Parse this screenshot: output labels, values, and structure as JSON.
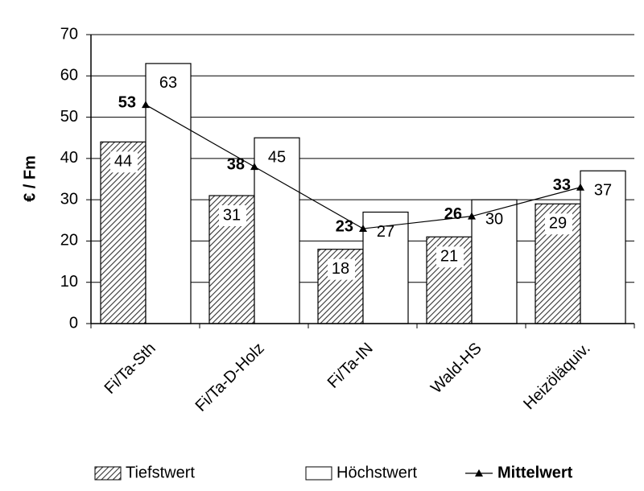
{
  "chart_data": {
    "type": "bar",
    "y_label": "€ / Fm",
    "categories": [
      "Fi/Ta-Sth",
      "Fi/Ta-D-Holz",
      "Fi/Ta-IN",
      "Wald-HS",
      "Heizöläquiv."
    ],
    "series": [
      {
        "name": "Tiefstwert",
        "color": "#000000",
        "values": [
          44,
          31,
          18,
          21,
          29
        ]
      },
      {
        "name": "Höchstwert",
        "color": "#ffffff",
        "values": [
          63,
          45,
          27,
          30,
          37
        ]
      },
      {
        "name": "Mittelwert",
        "type": "line",
        "color": "#000000",
        "values": [
          53,
          38,
          23,
          26,
          33
        ]
      }
    ],
    "ylim": [
      0,
      70
    ],
    "yticks": [
      0,
      10,
      20,
      30,
      40,
      50,
      60,
      70
    ],
    "grid": true
  }
}
